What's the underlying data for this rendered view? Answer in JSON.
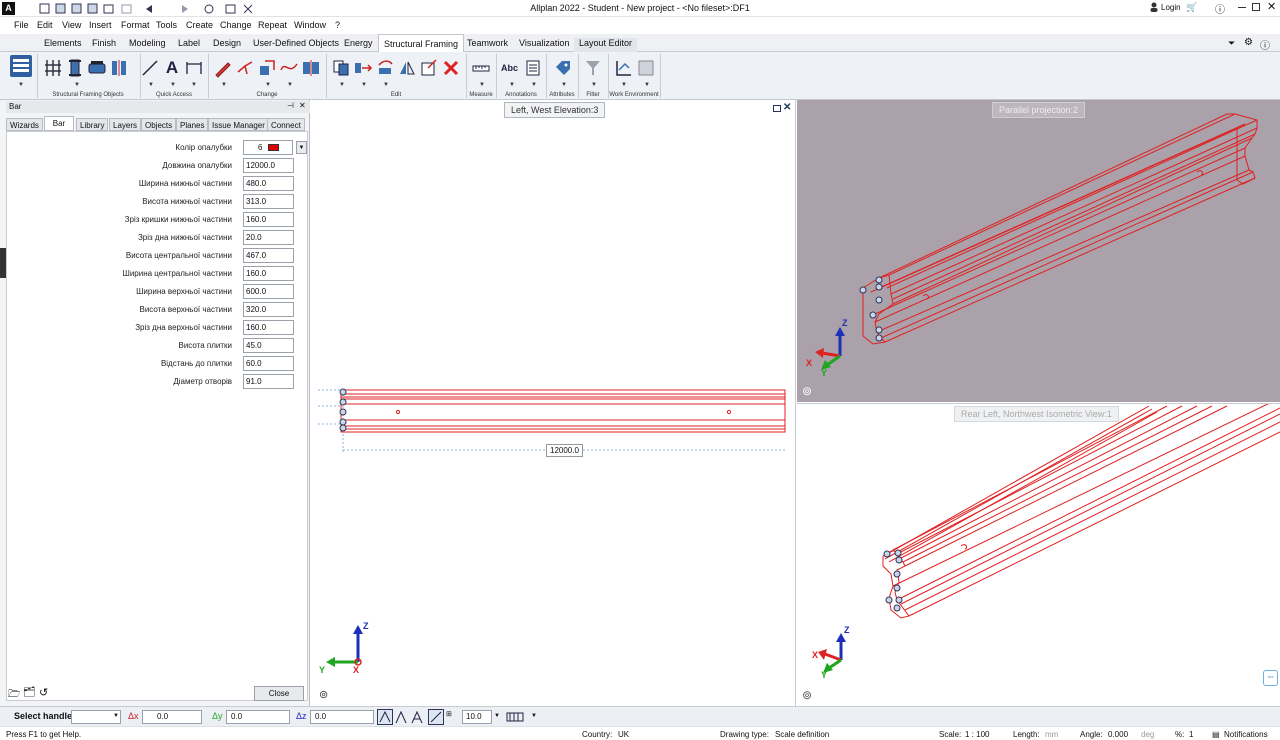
{
  "titlebar": {
    "app_logo": "A",
    "title": "Allplan 2022 - Student - New project - <No fileset>:DF1",
    "login_label": "Login"
  },
  "menubar": {
    "items": [
      "File",
      "Edit",
      "View",
      "Insert",
      "Format",
      "Tools",
      "Create",
      "Change",
      "Repeat",
      "Window",
      "?"
    ]
  },
  "ribbon_tabs": {
    "items": [
      "Elements",
      "Finish",
      "Modeling",
      "Label",
      "Design",
      "User-Defined Objects",
      "Energy",
      "Structural Framing",
      "Teamwork",
      "Visualization",
      "Layout Editor"
    ],
    "active": "Structural Framing"
  },
  "ribbon_groups": {
    "structural_framing_objects": "Structural Framing Objects",
    "quick_access": "Quick Access",
    "change": "Change",
    "edit": "Edit",
    "measure": "Measure",
    "annotations": "Annotations",
    "attributes": "Attributes",
    "filter": "Filter",
    "work_environment": "Work Environment",
    "abc_label": "Abc"
  },
  "left_panel": {
    "title": "Bar",
    "tabs": [
      "Wizards",
      "Bar",
      "Library",
      "Layers",
      "Objects",
      "Planes",
      "Issue Manager",
      "Connect"
    ],
    "active_tab": "Bar",
    "properties": [
      {
        "label": "Колір опалубки",
        "value": "6"
      },
      {
        "label": "Довжина опалубки",
        "value": "12000.0"
      },
      {
        "label": "Ширина нижньої частини",
        "value": "480.0"
      },
      {
        "label": "Висота нижньої частини",
        "value": "313.0"
      },
      {
        "label": "Зріз кришки нижньої частини",
        "value": "160.0"
      },
      {
        "label": "Зріз дна нижньої частини",
        "value": "20.0"
      },
      {
        "label": "Висота центральної частини",
        "value": "467.0"
      },
      {
        "label": "Ширина центральної частини",
        "value": "160.0"
      },
      {
        "label": "Ширина верхньої частини",
        "value": "600.0"
      },
      {
        "label": "Висота верхньої частини",
        "value": "320.0"
      },
      {
        "label": "Зріз дна верхньої частини",
        "value": "160.0"
      },
      {
        "label": "Висота плитки",
        "value": "45.0"
      },
      {
        "label": "Відстань до плитки",
        "value": "60.0"
      },
      {
        "label": "Діаметр отворів",
        "value": "91.0"
      }
    ],
    "color_swatch": "#e00000",
    "close_label": "Close"
  },
  "viewports": {
    "left_title": "Left, West Elevation:3",
    "left_dimension": "12000.0",
    "right_top_title": "Parallel projection:2",
    "right_bottom_title": "Rear Left, Northwest Isometric View:1",
    "axis_x": "X",
    "axis_y": "Y",
    "axis_z": "Z",
    "model_color": "#e02020",
    "right_top_bg": "#aaa1aa"
  },
  "inputbar": {
    "select_handle": "Select handle",
    "dx_label": "Δx",
    "dx_value": "0.0",
    "dy_label": "Δy",
    "dy_value": "0.0",
    "dz_label": "Δz",
    "dz_value": "0.0",
    "grid_value": "10.0"
  },
  "statusbar": {
    "help": "Press F1 to get Help.",
    "country_label": "Country:",
    "country_value": "UK",
    "drawing_type_label": "Drawing type:",
    "drawing_type_value": "Scale definition",
    "scale_label": "Scale:",
    "scale_value": "1 : 100",
    "length_label": "Length:",
    "length_value": "mm",
    "angle_label": "Angle:",
    "angle_value": "0.000",
    "angle_unit": "deg",
    "percent_label": "%:",
    "percent_value": "1",
    "notifications_label": "Notifications"
  }
}
